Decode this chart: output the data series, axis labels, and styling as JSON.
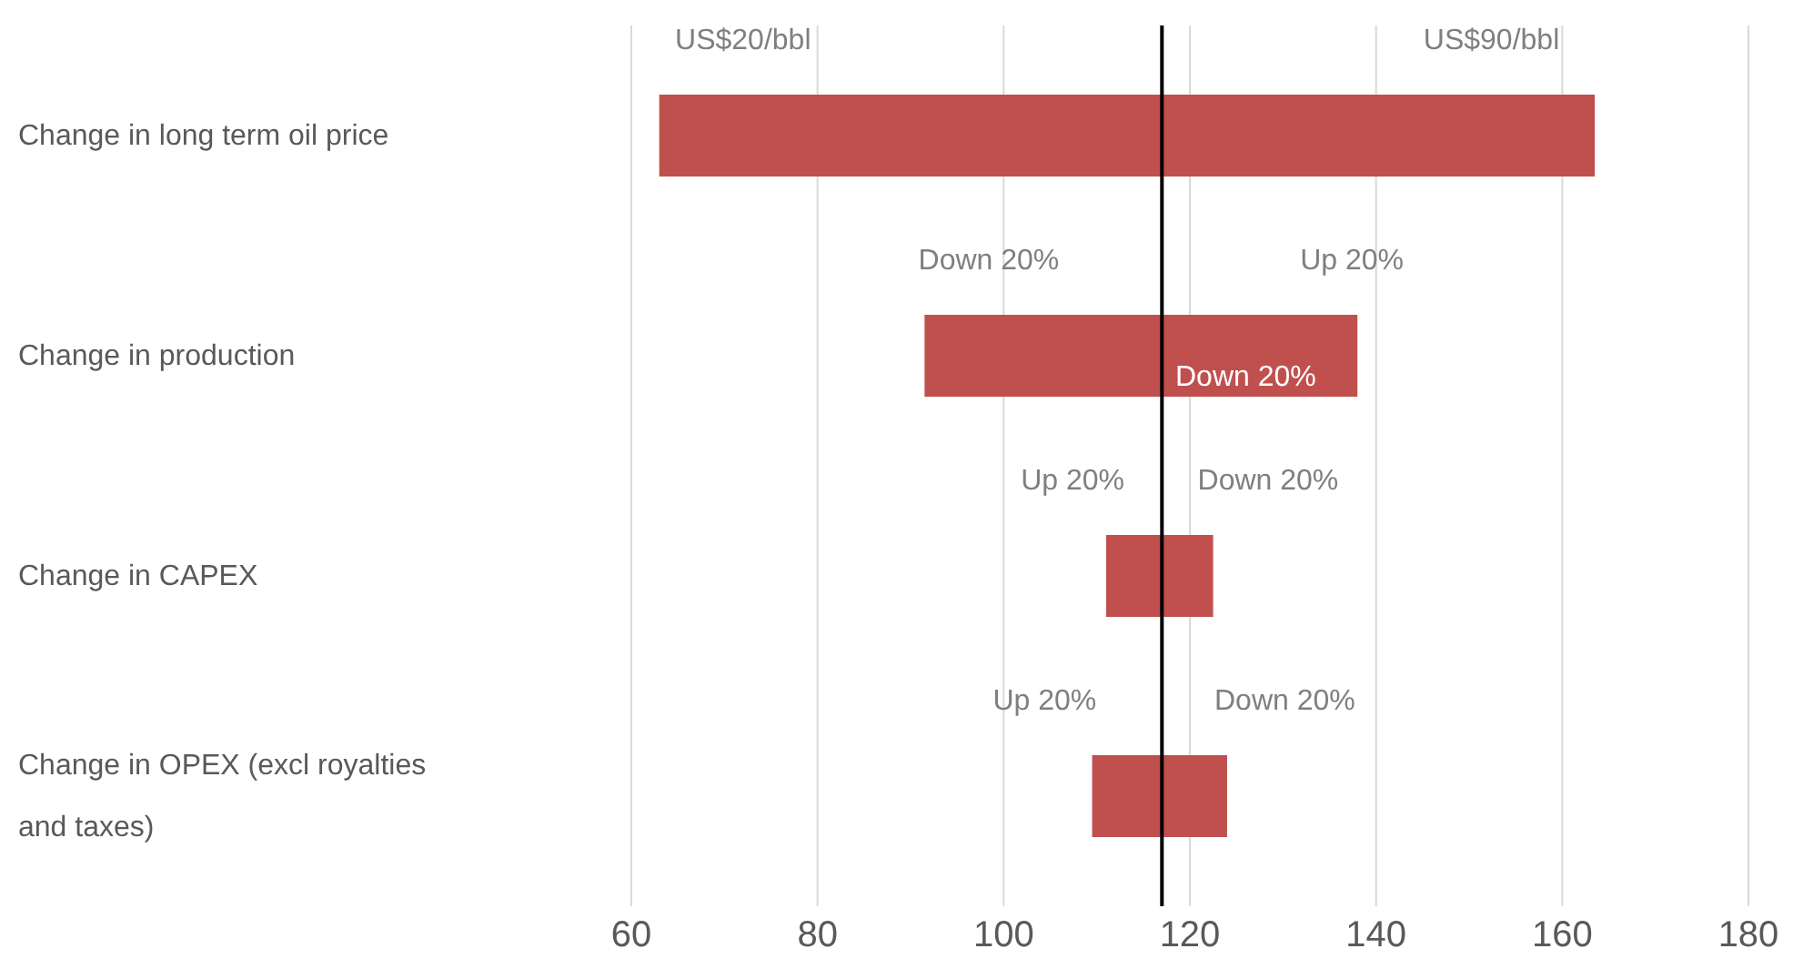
{
  "chart_data": {
    "type": "bar",
    "orientation": "horizontal",
    "categories": [
      "Change in long term oil price",
      "Change in production",
      "Change in CAPEX",
      "Change in OPEX (excl royalties and taxes)"
    ],
    "base": [
      63,
      91.5,
      111,
      109.5
    ],
    "values": [
      100.5,
      46.5,
      11.5,
      14.5
    ],
    "color": "#c0504d",
    "xlim": [
      60,
      180
    ],
    "xticks": [
      60,
      80,
      100,
      120,
      140,
      160,
      180
    ],
    "grid": "x",
    "ref_lines": [
      {
        "axis": "x",
        "value": 117,
        "color": "#000000"
      }
    ],
    "annotations": [
      "US$20/bbl",
      "US$90/bbl",
      "Down 20%",
      "Up 20%",
      "Down 20%",
      "Up 20%",
      "Down 20%",
      "Up 20%",
      "Down 20%"
    ]
  }
}
